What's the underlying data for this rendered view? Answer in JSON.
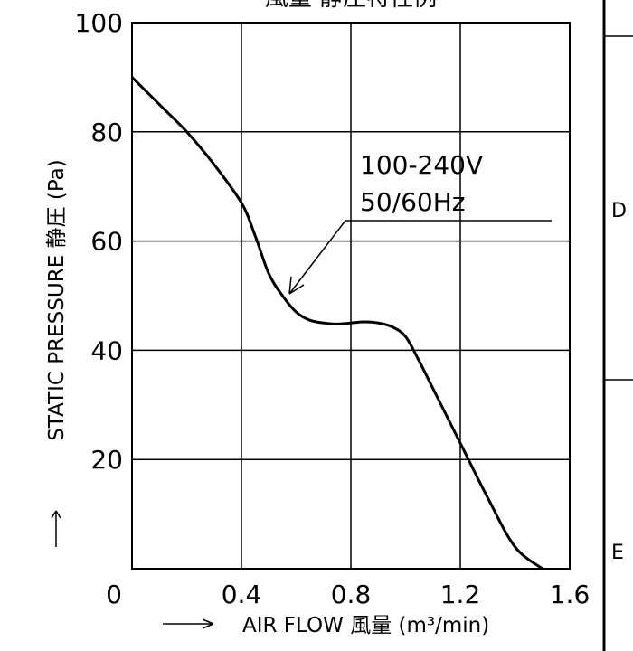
{
  "chart_data": {
    "type": "line",
    "title": "風量 静圧特性例",
    "xlabel": "AIR FLOW 風量 (m³/min)",
    "ylabel": "STATIC PRESSURE 静圧 (Pa)",
    "xlim": [
      0,
      1.6
    ],
    "ylim": [
      0,
      100
    ],
    "x_ticks": [
      "0",
      "0.4",
      "0.8",
      "1.2",
      "1.6"
    ],
    "y_ticks": [
      "20",
      "40",
      "60",
      "80",
      "100"
    ],
    "grid": true,
    "annotation": [
      "100-240V",
      "50/60Hz"
    ],
    "series": [
      {
        "x": [
          0,
          0.1,
          0.2,
          0.3,
          0.4,
          0.45,
          0.5,
          0.55,
          0.6,
          0.65,
          0.7,
          0.75,
          0.8,
          0.85,
          0.9,
          0.95,
          1.0,
          1.05,
          1.1,
          1.2,
          1.3,
          1.4,
          1.5
        ],
        "y": [
          90,
          85,
          80,
          74,
          67,
          61,
          54,
          50,
          47,
          45.5,
          45,
          44.8,
          45,
          45.2,
          45,
          44.3,
          42.5,
          38,
          33,
          23,
          13,
          4,
          -3
        ]
      }
    ]
  },
  "frame": {
    "letters": [
      "D",
      "E"
    ]
  }
}
